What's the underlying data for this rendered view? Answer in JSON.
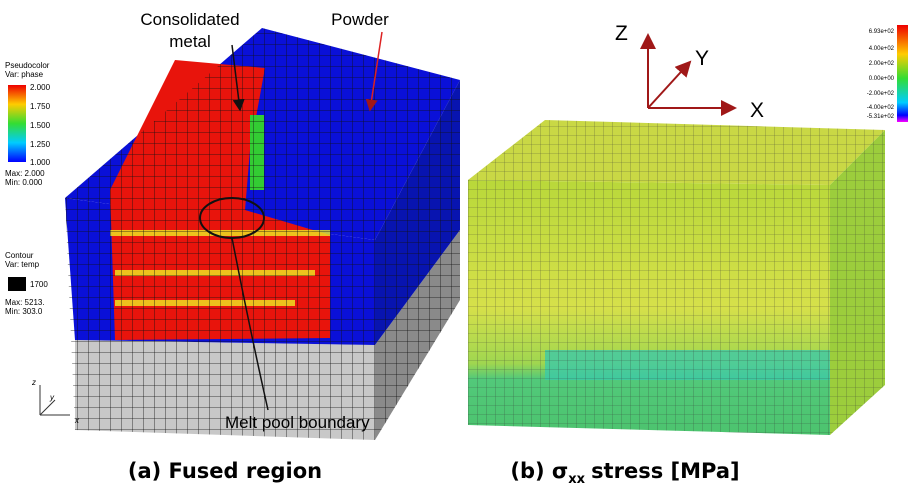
{
  "panel_a": {
    "labels": {
      "consolidated": [
        "Consolidated",
        "metal"
      ],
      "powder": "Powder",
      "melt_pool": "Melt pool boundary"
    },
    "caption": "(a) Fused region",
    "pseudocolor": {
      "title": "Pseudocolor",
      "var": "Var: phase",
      "ticks": [
        "2.000",
        "1.750",
        "1.500",
        "1.250",
        "1.000"
      ],
      "max": "Max: 2.000",
      "min": "Min: 0.000"
    },
    "contour": {
      "title": "Contour",
      "var": "Var: temp",
      "level": "1700",
      "max": "Max: 5213.",
      "min": "Min: 303.0"
    },
    "axes": [
      "z",
      "y",
      "x"
    ]
  },
  "panel_b": {
    "caption": {
      "prefix": "(b) σ",
      "subscript": "xx",
      "suffix": "stress [MPa]"
    },
    "axes": [
      "Z",
      "Y",
      "X"
    ],
    "colorbar": [
      "6.93e+02",
      "4.00e+02",
      "2.00e+02",
      "0.00e+00",
      "-2.00e+02",
      "-4.00e+02",
      "-5.31e+02"
    ]
  }
}
